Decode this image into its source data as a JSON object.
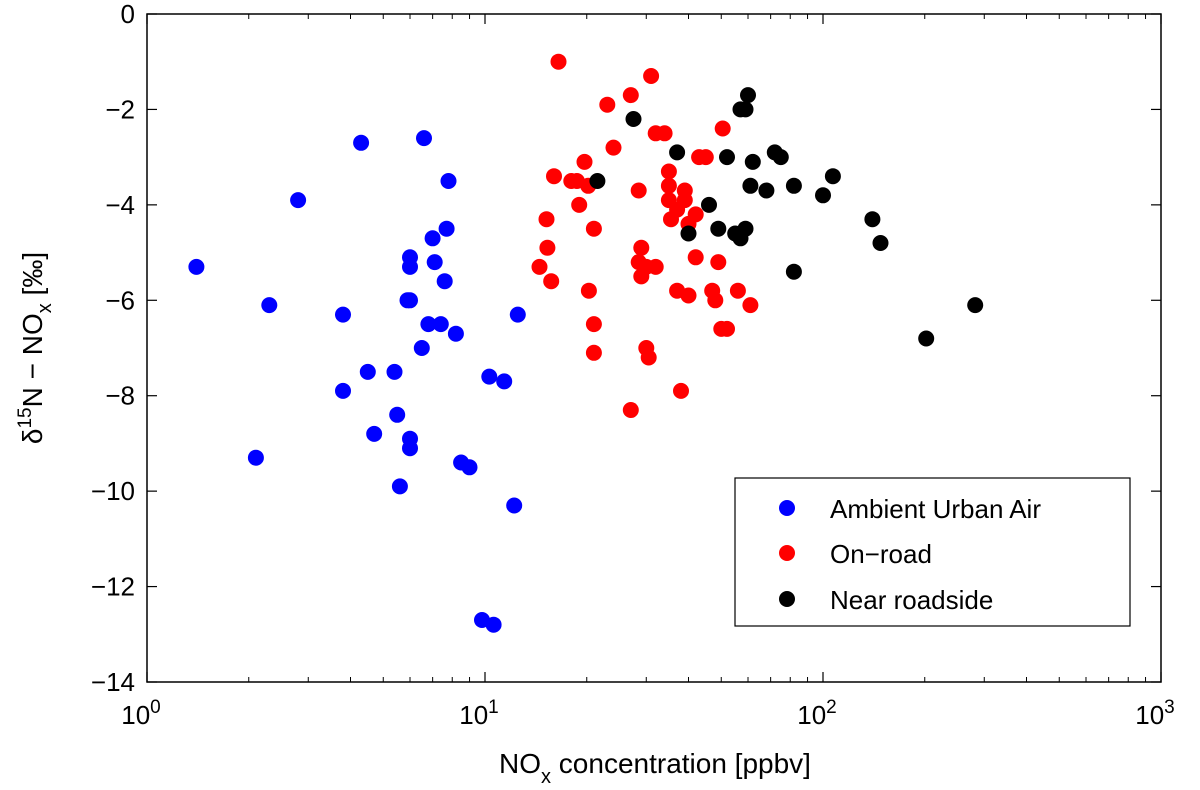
{
  "chart_data": {
    "type": "scatter",
    "xscale": "log",
    "xlim": [
      1,
      1000
    ],
    "ylim": [
      -14,
      0
    ],
    "grid": false,
    "legend_position": "bottom-right",
    "xlabel": "NO",
    "xlabel_sub": "x",
    "xlabel_rest": " concentration [ppbv]",
    "ylabel": "δ",
    "ylabel_sup": "15",
    "ylabel_mid": "N − NO",
    "ylabel_sub": "x",
    "ylabel_rest": " [‰]",
    "x_ticks": [
      {
        "value": 1,
        "base": "10",
        "exp": "0"
      },
      {
        "value": 10,
        "base": "10",
        "exp": "1"
      },
      {
        "value": 100,
        "base": "10",
        "exp": "2"
      },
      {
        "value": 1000,
        "base": "10",
        "exp": "3"
      }
    ],
    "y_ticks": [
      {
        "value": 0,
        "label": "0"
      },
      {
        "value": -2,
        "label": "−2"
      },
      {
        "value": -4,
        "label": "−4"
      },
      {
        "value": -6,
        "label": "−6"
      },
      {
        "value": -8,
        "label": "−8"
      },
      {
        "value": -10,
        "label": "−10"
      },
      {
        "value": -12,
        "label": "−12"
      },
      {
        "value": -14,
        "label": "−14"
      }
    ],
    "series": [
      {
        "name": "Ambient Urban Air",
        "color": "#0000ff",
        "points": [
          [
            1.4,
            -5.3
          ],
          [
            2.1,
            -9.3
          ],
          [
            2.3,
            -6.1
          ],
          [
            2.8,
            -3.9
          ],
          [
            3.8,
            -6.3
          ],
          [
            3.8,
            -7.9
          ],
          [
            4.3,
            -2.7
          ],
          [
            4.5,
            -7.5
          ],
          [
            4.7,
            -8.8
          ],
          [
            5.4,
            -7.5
          ],
          [
            5.5,
            -8.4
          ],
          [
            5.6,
            -9.9
          ],
          [
            5.9,
            -6.0
          ],
          [
            6.0,
            -5.1
          ],
          [
            6.0,
            -5.3
          ],
          [
            6.0,
            -6.0
          ],
          [
            6.0,
            -8.9
          ],
          [
            6.0,
            -9.1
          ],
          [
            6.5,
            -7.0
          ],
          [
            6.6,
            -2.6
          ],
          [
            6.8,
            -6.5
          ],
          [
            7.0,
            -4.7
          ],
          [
            7.1,
            -5.2
          ],
          [
            7.4,
            -6.5
          ],
          [
            7.6,
            -5.6
          ],
          [
            7.7,
            -4.5
          ],
          [
            7.8,
            -3.5
          ],
          [
            8.2,
            -6.7
          ],
          [
            8.5,
            -9.4
          ],
          [
            9.0,
            -9.5
          ],
          [
            9.8,
            -12.7
          ],
          [
            10.3,
            -7.6
          ],
          [
            10.6,
            -12.8
          ],
          [
            11.4,
            -7.7
          ],
          [
            12.2,
            -10.3
          ],
          [
            12.5,
            -6.3
          ]
        ]
      },
      {
        "name": "On−road",
        "color": "#ff0000",
        "points": [
          [
            14.5,
            -5.3
          ],
          [
            15.2,
            -4.3
          ],
          [
            15.3,
            -4.9
          ],
          [
            15.7,
            -5.6
          ],
          [
            16.0,
            -3.4
          ],
          [
            16.5,
            -1.0
          ],
          [
            18.0,
            -3.5
          ],
          [
            18.7,
            -3.5
          ],
          [
            19.0,
            -4.0
          ],
          [
            19.7,
            -3.1
          ],
          [
            20.2,
            -3.6
          ],
          [
            20.3,
            -5.8
          ],
          [
            21.0,
            -4.5
          ],
          [
            21.0,
            -6.5
          ],
          [
            21.0,
            -7.1
          ],
          [
            23.0,
            -1.9
          ],
          [
            24.0,
            -2.8
          ],
          [
            27.0,
            -8.3
          ],
          [
            27.0,
            -1.7
          ],
          [
            28.5,
            -3.7
          ],
          [
            28.5,
            -5.2
          ],
          [
            29.0,
            -4.9
          ],
          [
            29.0,
            -5.5
          ],
          [
            30.0,
            -5.3
          ],
          [
            30.0,
            -7.0
          ],
          [
            30.5,
            -7.2
          ],
          [
            31.0,
            -1.3
          ],
          [
            32.0,
            -2.5
          ],
          [
            32.0,
            -5.3
          ],
          [
            34.0,
            -2.5
          ],
          [
            35.0,
            -3.3
          ],
          [
            35.0,
            -3.6
          ],
          [
            35.0,
            -3.9
          ],
          [
            35.5,
            -4.3
          ],
          [
            37.0,
            -5.8
          ],
          [
            37.0,
            -4.1
          ],
          [
            38.0,
            -7.9
          ],
          [
            39.0,
            -3.7
          ],
          [
            39.0,
            -3.9
          ],
          [
            40.0,
            -4.4
          ],
          [
            40.0,
            -5.9
          ],
          [
            42.0,
            -5.1
          ],
          [
            42.0,
            -4.2
          ],
          [
            43.0,
            -3.0
          ],
          [
            45.0,
            -3.0
          ],
          [
            47.0,
            -5.8
          ],
          [
            48.0,
            -6.0
          ],
          [
            49.0,
            -5.2
          ],
          [
            50.0,
            -6.6
          ],
          [
            50.5,
            -2.4
          ],
          [
            52.0,
            -6.6
          ],
          [
            56.0,
            -5.8
          ],
          [
            61.0,
            -6.1
          ]
        ]
      },
      {
        "name": "Near roadside",
        "color": "#000000",
        "points": [
          [
            21.5,
            -3.5
          ],
          [
            27.5,
            -2.2
          ],
          [
            37.0,
            -2.9
          ],
          [
            40.0,
            -4.6
          ],
          [
            46.0,
            -4.0
          ],
          [
            49.0,
            -4.5
          ],
          [
            52.0,
            -3.0
          ],
          [
            55.0,
            -4.6
          ],
          [
            57.0,
            -2.0
          ],
          [
            57.0,
            -4.7
          ],
          [
            59.0,
            -2.0
          ],
          [
            59.0,
            -4.5
          ],
          [
            60.0,
            -1.7
          ],
          [
            61.0,
            -3.6
          ],
          [
            62.0,
            -3.1
          ],
          [
            68.0,
            -3.7
          ],
          [
            72.0,
            -2.9
          ],
          [
            75.0,
            -3.0
          ],
          [
            82.0,
            -3.6
          ],
          [
            82.0,
            -5.4
          ],
          [
            100.0,
            -3.8
          ],
          [
            107.0,
            -3.4
          ],
          [
            140.0,
            -4.3
          ],
          [
            148.0,
            -4.8
          ],
          [
            202.0,
            -6.8
          ],
          [
            282.0,
            -6.1
          ]
        ]
      }
    ]
  }
}
